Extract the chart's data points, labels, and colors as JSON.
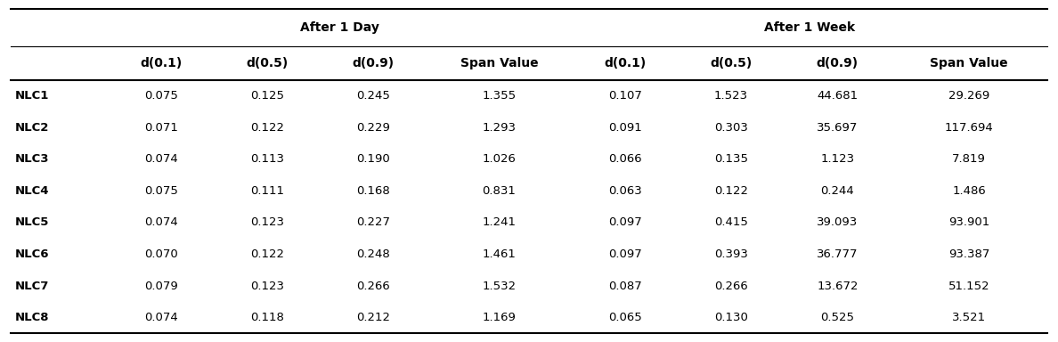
{
  "group_headers": [
    "After 1 Day",
    "After 1 Week"
  ],
  "col_headers": [
    "d(0.1)",
    "d(0.5)",
    "d(0.9)",
    "Span Value",
    "d(0.1)",
    "d(0.5)",
    "d(0.9)",
    "Span Value"
  ],
  "row_labels": [
    "NLC1",
    "NLC2",
    "NLC3",
    "NLC4",
    "NLC5",
    "NLC6",
    "NLC7",
    "NLC8"
  ],
  "data": [
    [
      "0.075",
      "0.125",
      "0.245",
      "1.355",
      "0.107",
      "1.523",
      "44.681",
      "29.269"
    ],
    [
      "0.071",
      "0.122",
      "0.229",
      "1.293",
      "0.091",
      "0.303",
      "35.697",
      "117.694"
    ],
    [
      "0.074",
      "0.113",
      "0.190",
      "1.026",
      "0.066",
      "0.135",
      "1.123",
      "7.819"
    ],
    [
      "0.075",
      "0.111",
      "0.168",
      "0.831",
      "0.063",
      "0.122",
      "0.244",
      "1.486"
    ],
    [
      "0.074",
      "0.123",
      "0.227",
      "1.241",
      "0.097",
      "0.415",
      "39.093",
      "93.901"
    ],
    [
      "0.070",
      "0.122",
      "0.248",
      "1.461",
      "0.097",
      "0.393",
      "36.777",
      "93.387"
    ],
    [
      "0.079",
      "0.123",
      "0.266",
      "1.532",
      "0.087",
      "0.266",
      "13.672",
      "51.152"
    ],
    [
      "0.074",
      "0.118",
      "0.212",
      "1.169",
      "0.065",
      "0.130",
      "0.525",
      "3.521"
    ]
  ],
  "background_color": "#ffffff",
  "text_color": "#000000",
  "header_fontsize": 10,
  "data_fontsize": 9.5,
  "label_fontsize": 9.5
}
